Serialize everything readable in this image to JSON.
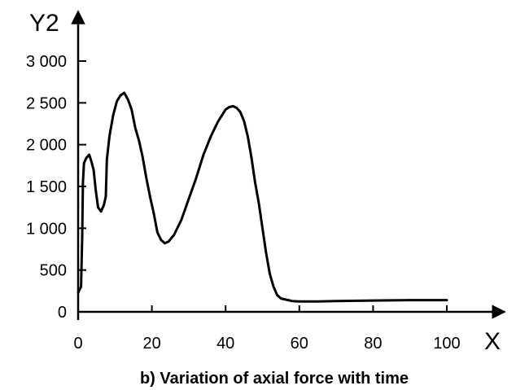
{
  "chart_data": {
    "type": "line",
    "title": "b)  Variation of axial force with time",
    "xlabel": "X",
    "ylabel": "Y2",
    "xlim": [
      0,
      100
    ],
    "ylim": [
      0,
      3000
    ],
    "x_ticks": [
      0,
      20,
      40,
      60,
      80,
      100
    ],
    "y_ticks": [
      0,
      500,
      1000,
      1500,
      2000,
      2500,
      3000
    ],
    "x_tick_labels": [
      "0",
      "20",
      "40",
      "60",
      "80",
      "100"
    ],
    "y_tick_labels": [
      "0",
      "500",
      "1 000",
      "1 500",
      "2 000",
      "2 500",
      "3 000"
    ],
    "grid": false,
    "series": [
      {
        "color": "#000000",
        "x": [
          0,
          0.8,
          1.1,
          1.3,
          1.6,
          2.2,
          3.0,
          3.6,
          4.2,
          4.8,
          5.4,
          6.2,
          7.0,
          7.5,
          7.8,
          8.5,
          9.5,
          10.5,
          11.5,
          12.5,
          13.5,
          14.5,
          15.5,
          16.5,
          17.5,
          18.5,
          19.5,
          20.5,
          21.5,
          22.5,
          23.5,
          24.5,
          26,
          28,
          30,
          32,
          34,
          36,
          38,
          40,
          41,
          42,
          43,
          44,
          45,
          46,
          47,
          48,
          49,
          50,
          51,
          52,
          53,
          54,
          55,
          56,
          57,
          58,
          60,
          65,
          70,
          80,
          90,
          100
        ],
        "y": [
          230,
          300,
          900,
          1550,
          1780,
          1840,
          1880,
          1800,
          1700,
          1450,
          1250,
          1200,
          1280,
          1380,
          1820,
          2100,
          2350,
          2520,
          2590,
          2620,
          2540,
          2420,
          2200,
          2050,
          1850,
          1600,
          1380,
          1180,
          950,
          860,
          820,
          840,
          920,
          1100,
          1350,
          1600,
          1880,
          2100,
          2280,
          2420,
          2450,
          2460,
          2440,
          2390,
          2280,
          2100,
          1850,
          1550,
          1300,
          1000,
          700,
          450,
          300,
          200,
          160,
          150,
          140,
          130,
          125,
          125,
          130,
          135,
          140,
          140
        ]
      }
    ]
  }
}
